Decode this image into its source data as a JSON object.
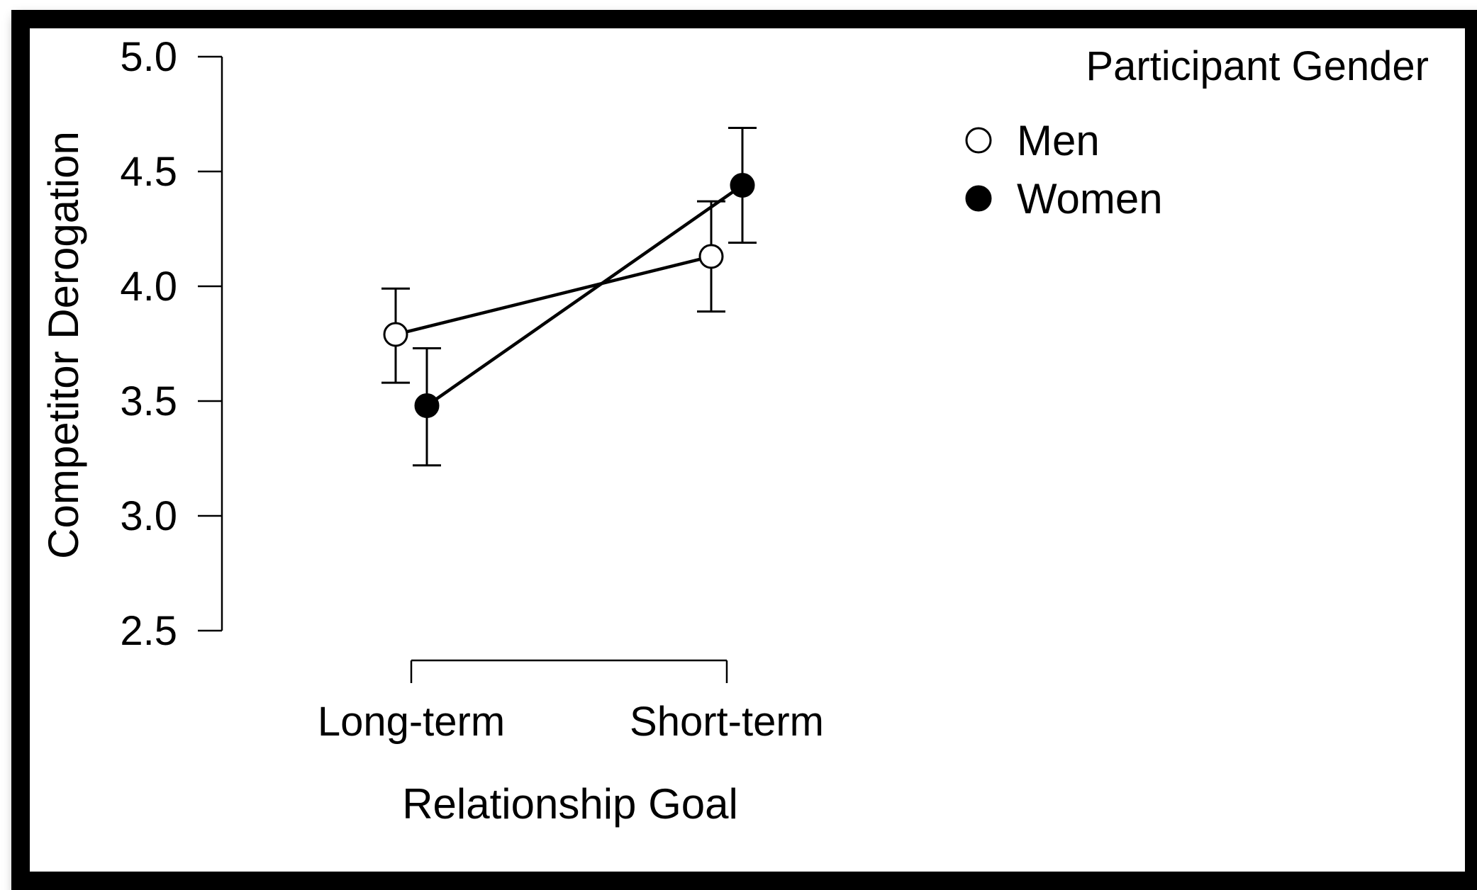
{
  "chart_data": {
    "type": "line",
    "title": "",
    "xlabel": "Relationship Goal",
    "ylabel": "Competitor Derogation",
    "categories": [
      "Long-term",
      "Short-term"
    ],
    "y_ticks": [
      "2.5",
      "3.0",
      "3.5",
      "4.0",
      "4.5",
      "5.0"
    ],
    "ylim": [
      2.5,
      5.0
    ],
    "grid": false,
    "legend": {
      "title": "Participant Gender",
      "placement": "top-right"
    },
    "series": [
      {
        "name": "Men",
        "marker": "open-circle",
        "color": "#000000",
        "fill": "#ffffff",
        "values": [
          3.79,
          4.13
        ],
        "error_low": [
          3.58,
          3.89
        ],
        "error_high": [
          3.99,
          4.37
        ]
      },
      {
        "name": "Women",
        "marker": "filled-circle",
        "color": "#000000",
        "fill": "#000000",
        "values": [
          3.48,
          4.44
        ],
        "error_low": [
          3.22,
          4.19
        ],
        "error_high": [
          3.73,
          4.69
        ]
      }
    ]
  }
}
